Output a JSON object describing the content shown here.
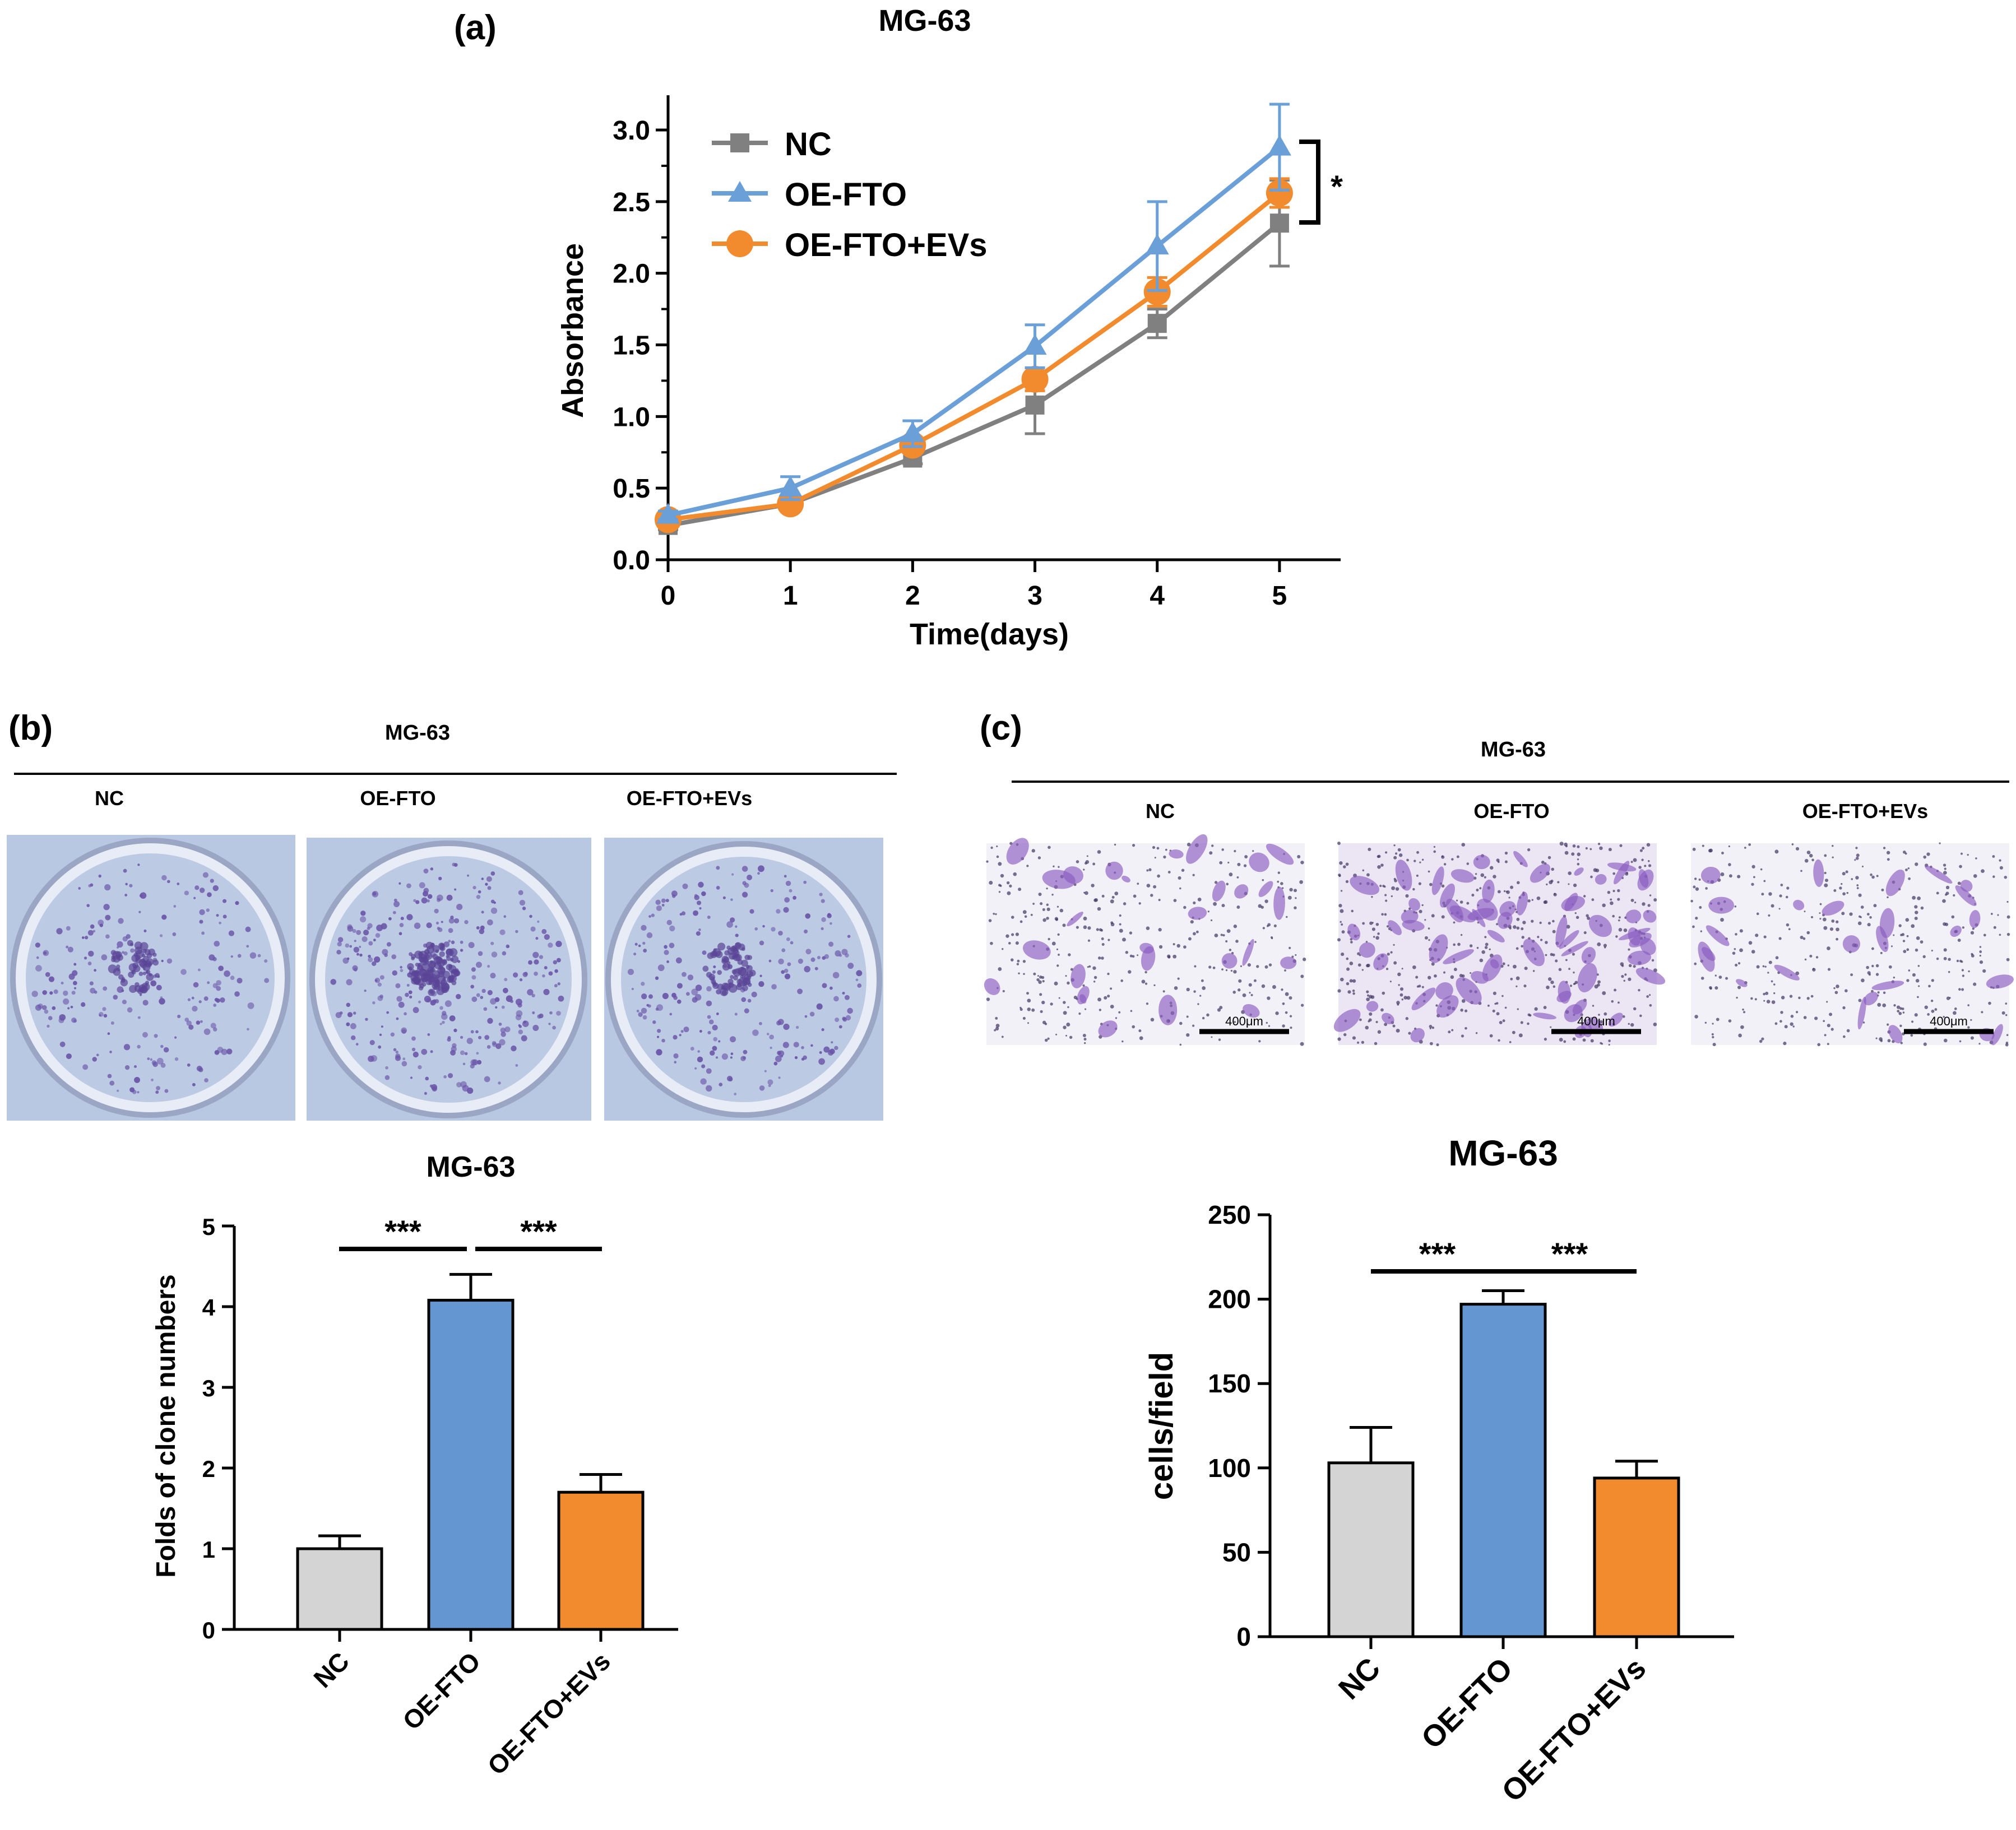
{
  "figure": {
    "panel_a_label": "(a)",
    "panel_b_label": "(b)",
    "panel_c_label": "(c)",
    "colors": {
      "nc": "#808080",
      "oe_fto": "#6a9fd8",
      "oe_fto_evs": "#f28a2e",
      "bar_nc": "#d4d4d4",
      "bar_oe": "#6497d2",
      "bar_evs": "#f28a2e",
      "plate_bg": "#b9c8e0",
      "stain": "#6a55a8",
      "transwell_bg": "#f3f1f8"
    }
  },
  "chart_data": [
    {
      "id": "a",
      "type": "line",
      "title": "MG-63",
      "xlabel": "Time(days)",
      "ylabel": "Absorbance",
      "x": [
        0,
        1,
        2,
        3,
        4,
        5
      ],
      "xlim": [
        0,
        5.5
      ],
      "ylim": [
        0,
        3.0
      ],
      "yticks": [
        "0.0",
        "0.5",
        "1.0",
        "1.5",
        "2.0",
        "2.5",
        "3.0"
      ],
      "xticks": [
        "0",
        "1",
        "2",
        "3",
        "4",
        "5"
      ],
      "series": [
        {
          "name": "NC",
          "marker": "square",
          "color": "#808080",
          "values": [
            0.24,
            0.39,
            0.71,
            1.08,
            1.65,
            2.35
          ],
          "errors": [
            0.03,
            0.03,
            0.04,
            0.2,
            0.1,
            0.3
          ]
        },
        {
          "name": "OE-FTO",
          "marker": "triangle",
          "color": "#6a9fd8",
          "values": [
            0.31,
            0.5,
            0.88,
            1.49,
            2.19,
            2.88
          ],
          "errors": [
            0.03,
            0.08,
            0.09,
            0.15,
            0.31,
            0.3
          ]
        },
        {
          "name": "OE-FTO+EVs",
          "marker": "circle",
          "color": "#f28a2e",
          "values": [
            0.28,
            0.39,
            0.8,
            1.26,
            1.87,
            2.56
          ],
          "errors": [
            0.03,
            0.03,
            0.05,
            0.08,
            0.1,
            0.1
          ]
        }
      ],
      "annotation": "*"
    },
    {
      "id": "b",
      "type": "bar",
      "title": "MG-63",
      "ylabel": "Folds of clone numbers",
      "categories": [
        "NC",
        "OE-FTO",
        "OE-FTO+EVs"
      ],
      "values": [
        1.0,
        4.08,
        1.7
      ],
      "errors": [
        0.16,
        0.32,
        0.22
      ],
      "ylim": [
        0,
        5
      ],
      "yticks": [
        "0",
        "1",
        "2",
        "3",
        "4",
        "5"
      ],
      "significance": [
        "***",
        "***"
      ]
    },
    {
      "id": "c",
      "type": "bar",
      "title": "MG-63",
      "ylabel": "cells/field",
      "categories": [
        "NC",
        "OE-FTO",
        "OE-FTO+EVs"
      ],
      "values": [
        103,
        197,
        94
      ],
      "errors": [
        21,
        8,
        10
      ],
      "ylim": [
        0,
        250
      ],
      "yticks": [
        "0",
        "50",
        "100",
        "150",
        "200",
        "250"
      ],
      "significance": [
        "***",
        "***"
      ]
    }
  ],
  "panel_b_images": {
    "header": "MG-63",
    "labels": [
      "NC",
      "OE-FTO",
      "OE-FTO+EVs"
    ]
  },
  "panel_c_images": {
    "header": "MG-63",
    "labels": [
      "NC",
      "OE-FTO",
      "OE-FTO+EVs"
    ],
    "scale_bar_label": "400μm"
  }
}
